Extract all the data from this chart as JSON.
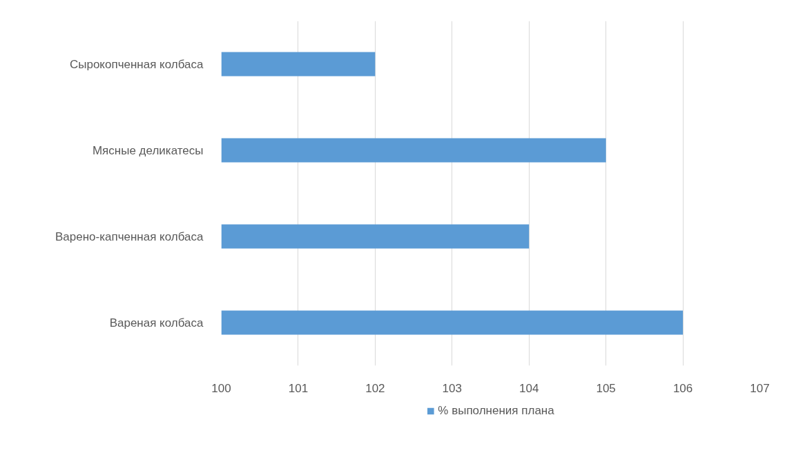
{
  "chart_data": {
    "type": "bar",
    "orientation": "horizontal",
    "categories": [
      "Сырокопченная колбаса",
      "Мясные деликатесы",
      "Варено-капченная колбаса",
      "Вареная колбаса"
    ],
    "series": [
      {
        "name": "% выполнения плана",
        "color": "#5b9bd5",
        "values": [
          102,
          105,
          104,
          106
        ]
      }
    ],
    "xlim": [
      100,
      107
    ],
    "xticks": [
      100,
      101,
      102,
      103,
      104,
      105,
      106,
      107
    ],
    "grid": "x",
    "legend": "bottom"
  }
}
